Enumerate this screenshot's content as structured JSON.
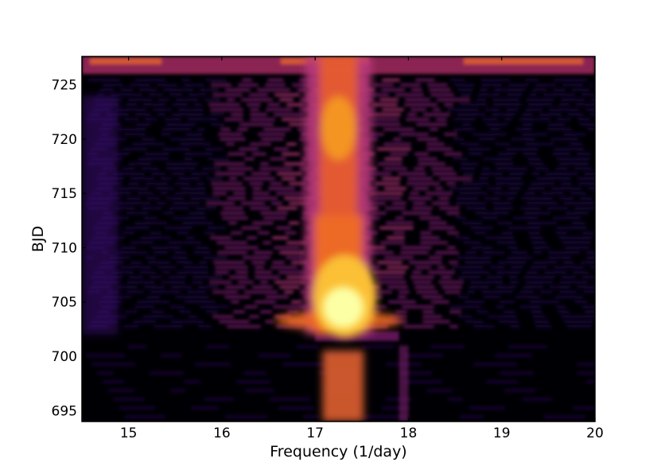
{
  "chart_data": {
    "type": "heatmap",
    "title": "",
    "xlabel": "Frequency (1/day)",
    "ylabel": "BJD",
    "xlim": [
      14.5,
      20.0
    ],
    "ylim": [
      694.0,
      727.6
    ],
    "x_ticks": [
      15,
      16,
      17,
      18,
      19,
      20
    ],
    "y_ticks": [
      695,
      700,
      705,
      710,
      715,
      720,
      725
    ],
    "x_tick_labels": [
      "15",
      "16",
      "17",
      "18",
      "19",
      "20"
    ],
    "y_tick_labels": [
      "695",
      "700",
      "705",
      "710",
      "715",
      "720",
      "725"
    ],
    "colormap": "inferno",
    "colors": {
      "background": "#000004",
      "low": "#1b0c41",
      "mid": "#781c6d",
      "high": "#ed6925",
      "peak": "#fcffa4"
    },
    "features": [
      {
        "name": "main power ridge",
        "x_center": 17.25,
        "y_range": [
          694.0,
          727.6
        ]
      },
      {
        "name": "power maximum",
        "x": 17.25,
        "y": 704.5
      },
      {
        "name": "data gap / power drop",
        "y": 702.0
      }
    ],
    "grid": false,
    "legend": "none"
  }
}
